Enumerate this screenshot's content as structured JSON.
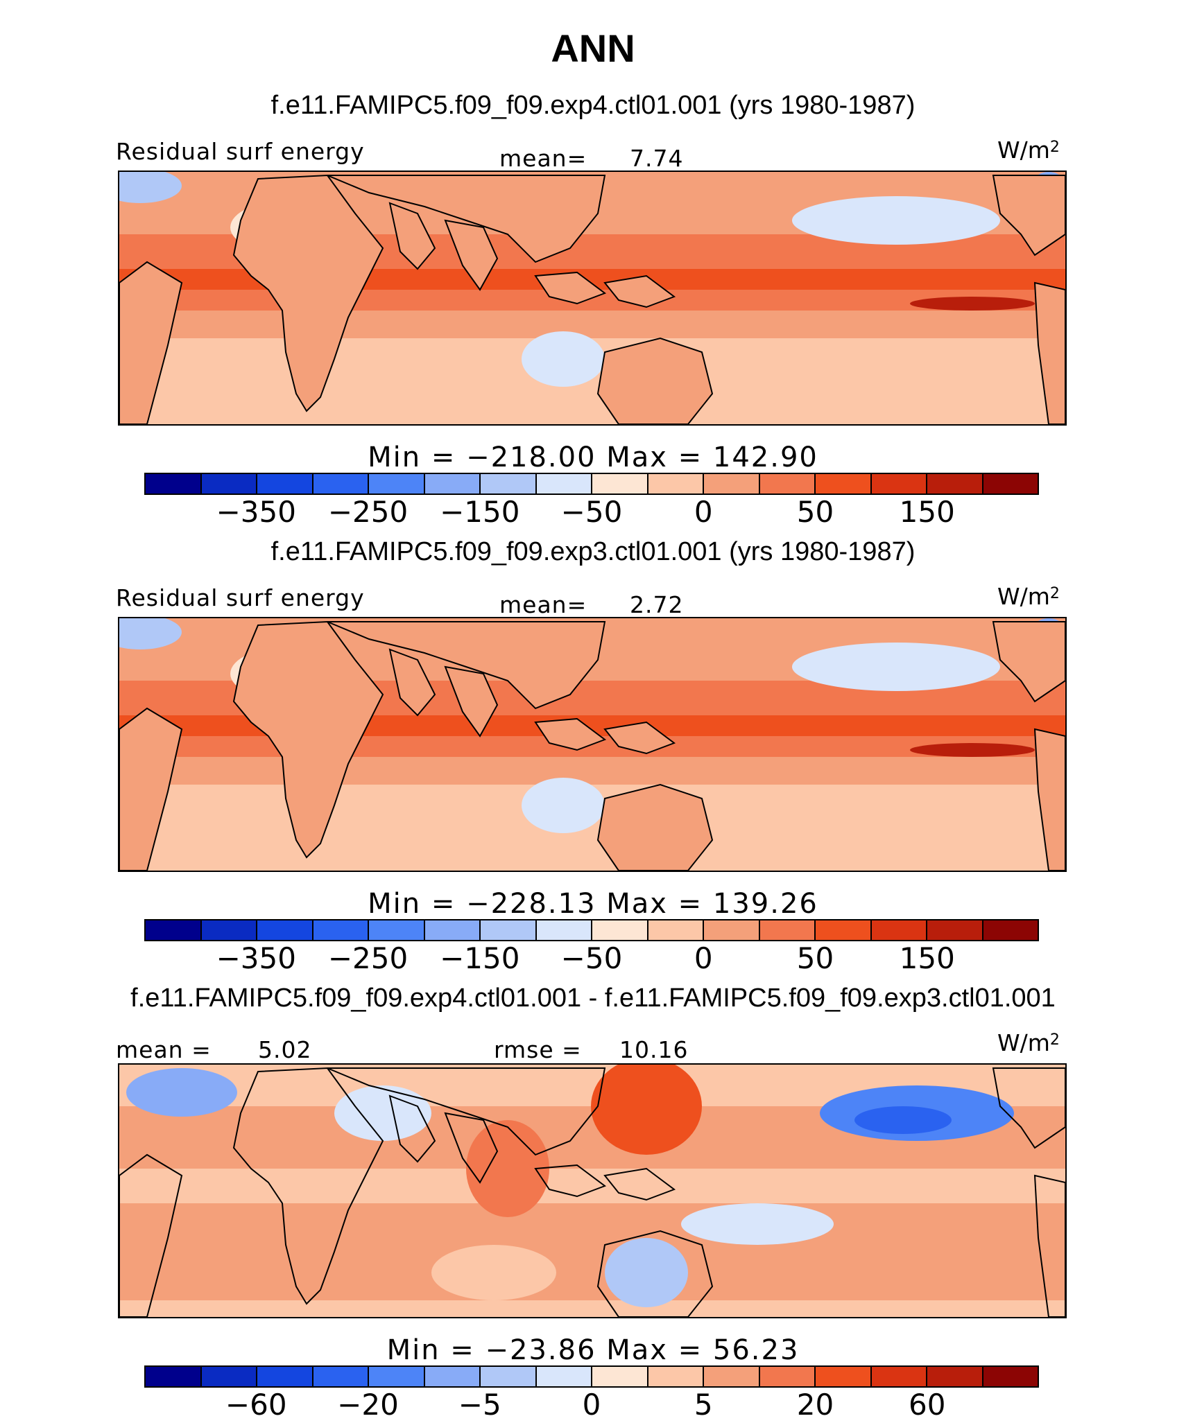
{
  "title": "ANN",
  "units": {
    "base": "W/m",
    "exp": "2"
  },
  "colors": {
    "seq": [
      "#00008c",
      "#0a2bc2",
      "#1446e0",
      "#2a62f0",
      "#4d84f7",
      "#88abf7",
      "#b0c8f7",
      "#d9e6fb",
      "#fde6d4",
      "#fcc7a8",
      "#f4a07a",
      "#f2774e",
      "#ee501e",
      "#da3412",
      "#b81e0b",
      "#8c0504"
    ],
    "land": "#f4a07a",
    "coast": "#000000"
  },
  "panels": [
    {
      "case_title": "f.e11.FAMIPC5.f09_f09.exp4.ctl01.001 (yrs 1980-1987)",
      "var_label": "Residual surf energy",
      "stat_label": "mean=",
      "stat_value": "7.74",
      "minmax": "Min = −218.00 Max = 142.90",
      "tick_labels": [
        "−350",
        "−250",
        "−150",
        "−50",
        "0",
        "50",
        "150"
      ]
    },
    {
      "case_title": "f.e11.FAMIPC5.f09_f09.exp3.ctl01.001 (yrs 1980-1987)",
      "var_label": "Residual surf energy",
      "stat_label": "mean=",
      "stat_value": "2.72",
      "minmax": "Min = −228.13 Max = 139.26",
      "tick_labels": [
        "−350",
        "−250",
        "−150",
        "−50",
        "0",
        "50",
        "150"
      ]
    },
    {
      "case_title": "f.e11.FAMIPC5.f09_f09.exp4.ctl01.001 - f.e11.FAMIPC5.f09_f09.exp3.ctl01.001",
      "stat1_label": "mean =",
      "stat1_value": "5.02",
      "stat2_label": "rmse =",
      "stat2_value": "10.16",
      "minmax": "Min = −23.86 Max =  56.23",
      "tick_labels": [
        "−60",
        "−20",
        "−5",
        "0",
        "5",
        "20",
        "60"
      ]
    }
  ]
}
